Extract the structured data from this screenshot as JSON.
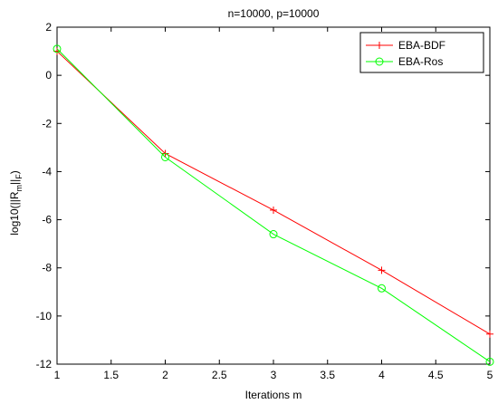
{
  "chart_data": {
    "type": "line",
    "title": "n=10000, p=10000",
    "xlabel": "Iterations m",
    "ylabel": {
      "prefix": "log10(||R",
      "sub1": "m",
      "mid": "||",
      "sub2": "F",
      "suffix": ")"
    },
    "xlim": [
      1,
      5
    ],
    "ylim": [
      -12,
      2
    ],
    "xticks": [
      "1",
      "1.5",
      "2",
      "2.5",
      "3",
      "3.5",
      "4",
      "4.5",
      "5"
    ],
    "yticks": [
      "2",
      "0",
      "-2",
      "-4",
      "-6",
      "-8",
      "-10",
      "-12"
    ],
    "grid": false,
    "legend_position": "top-right",
    "series": [
      {
        "name": "EBA-BDF",
        "color": "#ff0000",
        "marker": "plus",
        "x": [
          1,
          2,
          3,
          4,
          5
        ],
        "y": [
          1.0,
          -3.25,
          -5.6,
          -8.1,
          -10.75
        ]
      },
      {
        "name": "EBA-Ros",
        "color": "#00ff00",
        "marker": "circle",
        "x": [
          1,
          2,
          3,
          4,
          5
        ],
        "y": [
          1.1,
          -3.4,
          -6.6,
          -8.85,
          -11.9
        ]
      }
    ]
  }
}
